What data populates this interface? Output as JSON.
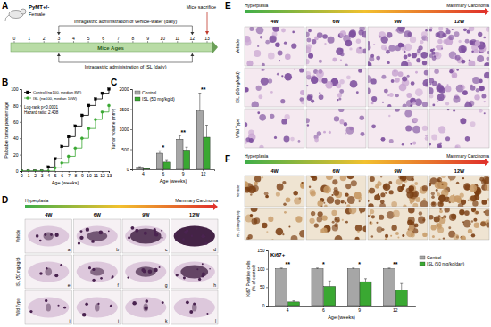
{
  "panel_labels": [
    "A",
    "B",
    "C",
    "D",
    "E",
    "F"
  ],
  "timeline": {
    "subject": "PyMT+/-",
    "sex": "Female",
    "ticks": [
      0,
      1,
      2,
      3,
      4,
      5,
      6,
      7,
      8,
      9,
      10,
      11,
      12,
      13
    ],
    "axis_label": "Mice Ages",
    "top_arm": "Intragastric administration of vehicle-water (daily)",
    "bottom_arm": "Intragastric administration of ISL (daily)",
    "end_label": "Mice sacrifice",
    "dosing_weeks": [
      3,
      12
    ]
  },
  "chart_data": [
    {
      "type": "line",
      "x_label": "Age (weeks)",
      "y_label": "Palpable tumor percentage",
      "x": [
        0,
        1,
        2,
        3,
        4,
        5,
        6,
        7,
        8,
        9,
        10,
        11,
        12,
        13
      ],
      "xlim": [
        0,
        13
      ],
      "xticks": [
        0,
        1,
        2,
        3,
        4,
        5,
        6,
        7,
        8,
        9,
        10,
        11,
        12,
        13
      ],
      "ylim": [
        0,
        100
      ],
      "yticks": [
        0,
        20,
        40,
        60,
        80,
        100
      ],
      "line_style": "step",
      "legend": "upper left",
      "annotations": [
        "Log-rank p<0.0001",
        "Hazard ratio: 2.408"
      ],
      "series": [
        {
          "name": "Control (n=100, median 8W)",
          "color": "#000000",
          "marker": "square",
          "values": [
            0,
            0,
            0,
            0,
            5,
            15,
            30,
            42,
            55,
            68,
            80,
            88,
            95,
            100
          ]
        },
        {
          "name": "ISL (n=100, median 10W)",
          "color": "#3aa832",
          "marker": "circle",
          "values": [
            0,
            0,
            0,
            0,
            0,
            4,
            10,
            18,
            28,
            40,
            52,
            63,
            72,
            80
          ]
        }
      ]
    },
    {
      "type": "bar",
      "x_label": "Age (weeks)",
      "y_label": "Tumor volume (mm³)",
      "categories": [
        "4",
        "6",
        "9",
        "12"
      ],
      "ylim": [
        0,
        2000
      ],
      "yticks": [
        0,
        500,
        1000,
        1500,
        2000
      ],
      "legend": "upper left",
      "annotations": [
        null,
        "*",
        "**",
        "**"
      ],
      "series": [
        {
          "name": "Control",
          "color": "#a6a6a6",
          "values": [
            50,
            400,
            750,
            1450
          ],
          "errors": [
            15,
            60,
            90,
            450
          ]
        },
        {
          "name": "ISL (50 mg/kg/d)",
          "color": "#3aa832",
          "values": [
            20,
            180,
            480,
            800
          ],
          "errors": [
            8,
            40,
            70,
            300
          ]
        }
      ]
    },
    {
      "type": "bar",
      "title": "Ki67+",
      "x_label": "Age (weeks)",
      "y_label": "Ki67 Positive cells (% of control)",
      "categories": [
        "4",
        "6",
        "9",
        "12"
      ],
      "ylim": [
        0,
        150
      ],
      "yticks": [
        0,
        50,
        100,
        150
      ],
      "legend": "right",
      "annotations": [
        "**",
        "*",
        "*",
        "**"
      ],
      "series": [
        {
          "name": "Control",
          "color": "#a6a6a6",
          "values": [
            100,
            100,
            100,
            100
          ],
          "errors": [
            2,
            2,
            2,
            2
          ]
        },
        {
          "name": "ISL (50 mg/kg/day)",
          "color": "#3aa832",
          "values": [
            10,
            52,
            65,
            42
          ],
          "errors": [
            3,
            15,
            8,
            18
          ]
        }
      ]
    }
  ],
  "image_panels": [
    {
      "progression": [
        "Hyperplasia",
        "Mammary Carcinoma"
      ],
      "columns": [
        "4W",
        "6W",
        "9W",
        "12W"
      ],
      "rows": [
        "Vehicle",
        "ISL (50 mg/kg/d)",
        "Wild Type"
      ],
      "letters": [
        "a",
        "b",
        "c",
        "d",
        "e",
        "f",
        "g",
        "h",
        "i",
        "j",
        "k",
        "l"
      ]
    },
    {
      "progression": [
        "Hyperplasia",
        "Mammary Carcinoma"
      ],
      "columns": [
        "4W",
        "6W",
        "9W",
        "12W"
      ],
      "rows": [
        "Vehicle",
        "ISL (50mg/kg/d)",
        "Wild Type"
      ]
    },
    {
      "progression": [
        "Hyperplasia",
        "Mammary Carcinoma"
      ],
      "columns": [
        "4W",
        "6W",
        "9W",
        "12W"
      ],
      "rows": [
        "Vehicle",
        "ISL (50mg/kg/d)"
      ]
    }
  ]
}
